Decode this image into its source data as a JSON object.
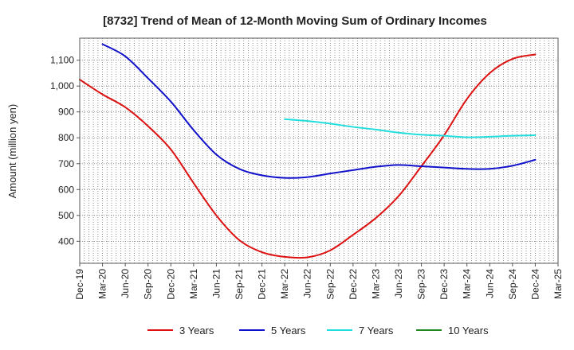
{
  "chart_data": {
    "type": "line",
    "title": "[8732]  Trend of Mean of 12-Month Moving Sum of Ordinary Incomes",
    "xlabel": "",
    "ylabel": "Amount (million yen)",
    "ylim": [
      315,
      1185
    ],
    "yticks": [
      400,
      500,
      600,
      700,
      800,
      900,
      1000,
      1100
    ],
    "ytick_labels": [
      "400",
      "500",
      "600",
      "700",
      "800",
      "900",
      "1,000",
      "1,100"
    ],
    "categories": [
      "Dec-19",
      "Mar-20",
      "Jun-20",
      "Sep-20",
      "Dec-20",
      "Mar-21",
      "Jun-21",
      "Sep-21",
      "Dec-21",
      "Mar-22",
      "Jun-22",
      "Sep-22",
      "Dec-22",
      "Mar-23",
      "Jun-23",
      "Sep-23",
      "Dec-23",
      "Mar-24",
      "Jun-24",
      "Sep-24",
      "Dec-24",
      "Mar-25"
    ],
    "grid": true,
    "legend_position": "bottom",
    "series": [
      {
        "name": "3 Years",
        "color": "#dd1111",
        "values": [
          1025,
          968,
          918,
          845,
          755,
          625,
          500,
          405,
          358,
          340,
          338,
          365,
          425,
          490,
          575,
          690,
          810,
          950,
          1050,
          1105,
          1122,
          null
        ]
      },
      {
        "name": "5 Years",
        "color": "#1111cc",
        "values": [
          null,
          1162,
          1115,
          1030,
          940,
          830,
          735,
          680,
          655,
          645,
          648,
          662,
          675,
          688,
          695,
          690,
          685,
          680,
          680,
          692,
          715,
          null
        ]
      },
      {
        "name": "7 Years",
        "color": "#22dddd",
        "values": [
          null,
          null,
          null,
          null,
          null,
          null,
          null,
          null,
          null,
          872,
          865,
          855,
          842,
          832,
          820,
          812,
          808,
          802,
          804,
          808,
          810,
          null
        ]
      },
      {
        "name": "10 Years",
        "color": "#228822",
        "values": [
          null,
          null,
          null,
          null,
          null,
          null,
          null,
          null,
          null,
          null,
          null,
          null,
          null,
          null,
          null,
          null,
          null,
          null,
          null,
          null,
          null,
          null
        ]
      }
    ]
  }
}
